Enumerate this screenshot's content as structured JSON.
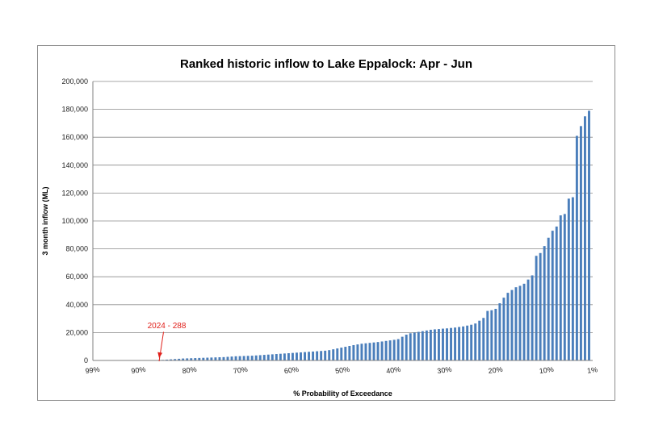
{
  "chart_data": {
    "type": "bar",
    "title": "Ranked historic inflow to Lake Eppalock: Apr - Jun",
    "xlabel": "% Probability of Exceedance",
    "ylabel": "3 month inflow (ML)",
    "ylim": [
      0,
      200000
    ],
    "y_ticks": [
      "0",
      "20,000",
      "40,000",
      "60,000",
      "80,000",
      "100,000",
      "120,000",
      "140,000",
      "160,000",
      "180,000",
      "200,000"
    ],
    "x_ticks": [
      "99%",
      "90%",
      "80%",
      "70%",
      "60%",
      "50%",
      "40%",
      "30%",
      "20%",
      "10%",
      "1%"
    ],
    "x_tick_values": [
      99,
      90,
      80,
      70,
      60,
      50,
      40,
      30,
      20,
      10,
      1
    ],
    "grid": true,
    "bar_color": "#4a7ebb",
    "annotation": {
      "text": "2024 - 288",
      "value": 288,
      "color": "#e0201b"
    },
    "values": [
      288,
      400,
      600,
      800,
      1000,
      1200,
      1400,
      1500,
      1600,
      1700,
      1800,
      1900,
      2000,
      2100,
      2200,
      2300,
      2400,
      2600,
      2800,
      3000,
      3100,
      3200,
      3300,
      3400,
      3600,
      3800,
      4000,
      4200,
      4400,
      4600,
      4800,
      5000,
      5200,
      5400,
      5600,
      5800,
      6000,
      6200,
      6400,
      6600,
      6800,
      7000,
      7400,
      8000,
      8600,
      9200,
      9800,
      10400,
      11000,
      11500,
      12000,
      12300,
      12600,
      12900,
      13200,
      13600,
      14000,
      14400,
      14800,
      15300,
      17000,
      18500,
      19500,
      20000,
      20500,
      21000,
      21500,
      22000,
      22300,
      22500,
      22800,
      23000,
      23300,
      23600,
      24000,
      24400,
      25000,
      25600,
      26500,
      28500,
      30500,
      35500,
      36000,
      37000,
      41000,
      45000,
      48500,
      50500,
      52500,
      53500,
      55000,
      58000,
      61000,
      75000,
      77000,
      82000,
      88000,
      93000,
      96000,
      104000,
      105000,
      116000,
      117000,
      161000,
      168000,
      175000,
      179000
    ]
  }
}
